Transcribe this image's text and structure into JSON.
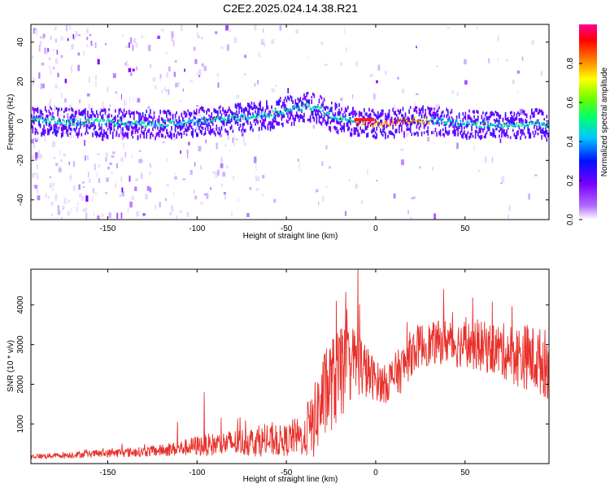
{
  "title": "C2E2.2025.024.14.38.R21",
  "chart_data": [
    {
      "type": "heatmap",
      "title": "C2E2.2025.024.14.38.R21",
      "xlabel": "Height of straight line (km)",
      "ylabel": "Frequency (Hz)",
      "xlim": [
        -193,
        97
      ],
      "ylim": [
        -50,
        49
      ],
      "xticks": [
        -150,
        -100,
        -50,
        0,
        50
      ],
      "yticks": [
        -40,
        -20,
        0,
        20,
        40
      ],
      "ridge": {
        "x": [
          -190,
          -170,
          -150,
          -130,
          -110,
          -90,
          -80,
          -70,
          -60,
          -50,
          -40,
          -35,
          -30,
          -25,
          -20,
          -15,
          -10,
          -5,
          0,
          10,
          20,
          30,
          40,
          50,
          60,
          70,
          80,
          90,
          97
        ],
        "y": [
          1,
          0,
          0,
          -1,
          0,
          1,
          2,
          3,
          4,
          6,
          8,
          8,
          6,
          3,
          2,
          1,
          0,
          0,
          -1,
          0,
          1,
          1,
          0,
          -1,
          -1,
          -2,
          -1,
          0,
          -2
        ]
      },
      "colorbar": {
        "label": "Normalized spectral amplitude",
        "range": [
          0,
          1
        ],
        "ticks": [
          "0.0",
          "0.2",
          "0.4",
          "0.6",
          "0.8"
        ],
        "colors": [
          "#ffffff",
          "#8b00ff",
          "#0000ff",
          "#00bfff",
          "#00ff7f",
          "#7fff00",
          "#ffff00",
          "#ff7f00",
          "#ff0000",
          "#ff00aa"
        ]
      }
    },
    {
      "type": "line",
      "xlabel": "Height of straight line (km)",
      "ylabel": "SNR (10 * v/v)",
      "xlim": [
        -193,
        97
      ],
      "ylim": [
        0,
        4900
      ],
      "xticks": [
        -150,
        -100,
        -50,
        0,
        50
      ],
      "yticks": [
        1000,
        2000,
        3000,
        4000
      ],
      "color": "#e8302a",
      "x": [
        -193,
        -180,
        -170,
        -160,
        -150,
        -140,
        -130,
        -120,
        -110,
        -100,
        -90,
        -80,
        -70,
        -60,
        -50,
        -45,
        -40,
        -35,
        -30,
        -25,
        -20,
        -15,
        -10,
        -5,
        0,
        5,
        10,
        15,
        20,
        25,
        30,
        35,
        40,
        45,
        50,
        55,
        60,
        65,
        70,
        75,
        80,
        85,
        90,
        97
      ],
      "y": [
        180,
        200,
        220,
        240,
        260,
        280,
        300,
        330,
        380,
        450,
        480,
        520,
        560,
        560,
        580,
        700,
        600,
        1000,
        1600,
        2000,
        2200,
        2500,
        2600,
        2300,
        2100,
        2000,
        2200,
        2400,
        2800,
        3000,
        3000,
        3050,
        3100,
        3000,
        3050,
        2950,
        2950,
        2900,
        2850,
        2800,
        2700,
        2700,
        2600,
        2500
      ],
      "spread": [
        60,
        70,
        80,
        90,
        110,
        120,
        130,
        150,
        190,
        260,
        300,
        340,
        380,
        390,
        400,
        480,
        430,
        900,
        1100,
        1200,
        1200,
        1000,
        900,
        700,
        500,
        500,
        550,
        600,
        600,
        550,
        550,
        550,
        600,
        600,
        600,
        600,
        650,
        650,
        700,
        750,
        800,
        850,
        850,
        900
      ],
      "peaks": [
        {
          "x": -142,
          "y": 500
        },
        {
          "x": -111,
          "y": 1050
        },
        {
          "x": -96,
          "y": 1800
        },
        {
          "x": -38,
          "y": 1550
        },
        {
          "x": -22,
          "y": 4100
        },
        {
          "x": -19,
          "y": 3400
        },
        {
          "x": -10,
          "y": 4900
        },
        {
          "x": 38,
          "y": 4400
        }
      ]
    }
  ]
}
